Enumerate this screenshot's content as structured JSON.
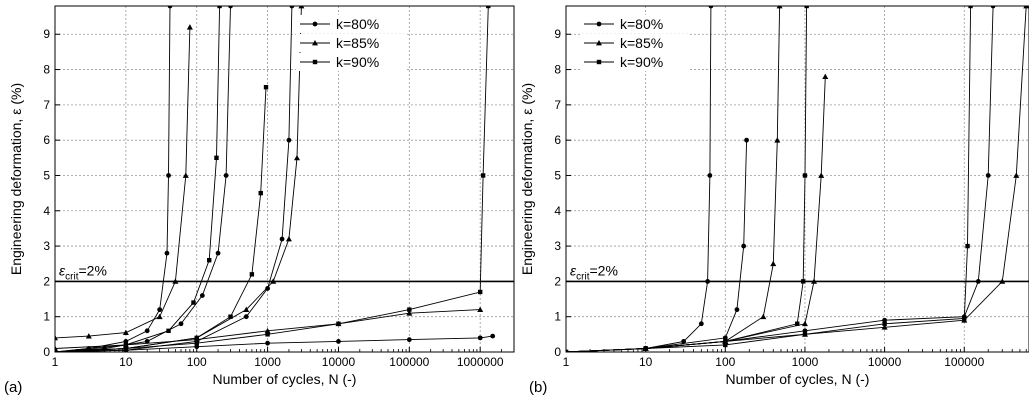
{
  "chart_data": [
    {
      "type": "line",
      "panel_label": "(a)",
      "xlabel": "Number of cycles, N (-)",
      "ylabel": "Engineering deformation, ε (%)",
      "x_scale": "log",
      "xlim": [
        1,
        3000000
      ],
      "ylim": [
        0,
        9.8
      ],
      "x_ticks": [
        1,
        10,
        100,
        1000,
        10000,
        100000,
        1000000
      ],
      "x_tick_labels": [
        "1",
        "10",
        "100",
        "1000",
        "10000",
        "100000",
        "1000000"
      ],
      "y_ticks": [
        0,
        1,
        2,
        3,
        4,
        5,
        6,
        7,
        8,
        9
      ],
      "y_tick_labels": [
        "0",
        "1",
        "2",
        "3",
        "4",
        "5",
        "6",
        "7",
        "8",
        "9"
      ],
      "grid": true,
      "legend_position": "top-right",
      "threshold": {
        "y": 2,
        "label": "ε_crit=2%",
        "label_main": "ε",
        "label_sub": "crit",
        "label_tail": "=2%"
      },
      "series": [
        {
          "name": "k=80%",
          "marker": "circle",
          "curves": [
            {
              "x": [
                1,
                3,
                10,
                20,
                30,
                38,
                40,
                42
              ],
              "y": [
                0,
                0.1,
                0.3,
                0.6,
                1.2,
                2.8,
                5.0,
                9.8
              ]
            },
            {
              "x": [
                1,
                5,
                20,
                60,
                120,
                200,
                260,
                300
              ],
              "y": [
                0,
                0.1,
                0.3,
                0.8,
                1.6,
                2.8,
                5.0,
                9.8
              ]
            },
            {
              "x": [
                1,
                10,
                100,
                500,
                1000,
                1600,
                2000,
                2200
              ],
              "y": [
                0,
                0.05,
                0.3,
                1.0,
                1.8,
                3.2,
                6.0,
                9.8
              ]
            },
            {
              "x": [
                1,
                10,
                100,
                1000,
                10000,
                100000,
                1000000,
                1500000
              ],
              "y": [
                0,
                0.05,
                0.15,
                0.25,
                0.3,
                0.35,
                0.4,
                0.45
              ]
            }
          ]
        },
        {
          "name": "k=85%",
          "marker": "triangle",
          "curves": [
            {
              "x": [
                1,
                3,
                10,
                30,
                50,
                70,
                80
              ],
              "y": [
                0.4,
                0.45,
                0.55,
                1.0,
                2.0,
                5.0,
                9.2
              ]
            },
            {
              "x": [
                1,
                10,
                100,
                500,
                1200,
                2000,
                2600,
                3000
              ],
              "y": [
                0,
                0.1,
                0.4,
                1.2,
                2.0,
                3.2,
                5.5,
                9.8
              ]
            },
            {
              "x": [
                1,
                10,
                100,
                1000,
                10000,
                100000,
                1000000
              ],
              "y": [
                0.1,
                0.2,
                0.35,
                0.6,
                0.8,
                1.1,
                1.2
              ]
            }
          ]
        },
        {
          "name": "k=90%",
          "marker": "square",
          "curves": [
            {
              "x": [
                1,
                10,
                40,
                90,
                150,
                190,
                210
              ],
              "y": [
                0,
                0.2,
                0.6,
                1.4,
                2.6,
                5.5,
                9.8
              ]
            },
            {
              "x": [
                1,
                10,
                100,
                300,
                600,
                800,
                950
              ],
              "y": [
                0,
                0.1,
                0.4,
                1.0,
                2.2,
                4.5,
                7.5
              ]
            },
            {
              "x": [
                1,
                10,
                100,
                1000,
                10000,
                100000,
                1000000,
                1100000,
                1300000
              ],
              "y": [
                0,
                0.1,
                0.25,
                0.5,
                0.8,
                1.2,
                1.7,
                5.0,
                9.8
              ]
            }
          ]
        }
      ]
    },
    {
      "type": "line",
      "panel_label": "(b)",
      "xlabel": "Number of cycles, N (-)",
      "ylabel": "Engineering deformation, ε (%)",
      "x_scale": "log",
      "xlim": [
        1,
        650000
      ],
      "ylim": [
        0,
        9.8
      ],
      "x_ticks": [
        1,
        10,
        100,
        1000,
        10000,
        100000
      ],
      "x_tick_labels": [
        "1",
        "10",
        "100",
        "1000",
        "10000",
        "100000"
      ],
      "y_ticks": [
        0,
        1,
        2,
        3,
        4,
        5,
        6,
        7,
        8,
        9
      ],
      "y_tick_labels": [
        "0",
        "1",
        "2",
        "3",
        "4",
        "5",
        "6",
        "7",
        "8",
        "9"
      ],
      "grid": true,
      "legend_position": "top-left",
      "threshold": {
        "y": 2,
        "label": "ε_crit=2%",
        "label_main": "ε",
        "label_sub": "crit",
        "label_tail": "=2%"
      },
      "series": [
        {
          "name": "k=80%",
          "marker": "circle",
          "curves": [
            {
              "x": [
                1,
                10,
                30,
                50,
                60,
                64,
                66
              ],
              "y": [
                0,
                0.1,
                0.3,
                0.8,
                2.0,
                5.0,
                9.8
              ]
            },
            {
              "x": [
                1,
                10,
                100,
                140,
                170,
                185
              ],
              "y": [
                0,
                0.1,
                0.4,
                1.2,
                3.0,
                6.0
              ]
            },
            {
              "x": [
                1,
                10,
                100,
                1000,
                10000,
                100000,
                150000,
                200000,
                230000
              ],
              "y": [
                0,
                0.1,
                0.3,
                0.6,
                0.9,
                1.0,
                2.0,
                5.0,
                9.8
              ]
            }
          ]
        },
        {
          "name": "k=85%",
          "marker": "triangle",
          "curves": [
            {
              "x": [
                1,
                10,
                100,
                300,
                400,
                450,
                480
              ],
              "y": [
                0,
                0.1,
                0.3,
                1.0,
                2.5,
                6.0,
                9.8
              ]
            },
            {
              "x": [
                1,
                10,
                100,
                1000,
                1300,
                1600,
                1800
              ],
              "y": [
                0,
                0.1,
                0.3,
                0.8,
                2.0,
                5.0,
                7.8
              ]
            },
            {
              "x": [
                1,
                10,
                100,
                1000,
                10000,
                100000,
                300000,
                450000,
                600000
              ],
              "y": [
                0,
                0.1,
                0.3,
                0.5,
                0.7,
                0.9,
                2.0,
                5.0,
                9.8
              ]
            }
          ]
        },
        {
          "name": "k=90%",
          "marker": "square",
          "curves": [
            {
              "x": [
                1,
                10,
                100,
                800,
                950,
                1000,
                1050
              ],
              "y": [
                0,
                0.1,
                0.3,
                0.8,
                2.0,
                5.0,
                9.8
              ]
            },
            {
              "x": [
                1,
                10,
                100,
                1000,
                10000,
                100000,
                110000,
                120000
              ],
              "y": [
                0,
                0.1,
                0.2,
                0.5,
                0.8,
                0.95,
                3.0,
                9.8
              ]
            }
          ]
        }
      ]
    }
  ]
}
